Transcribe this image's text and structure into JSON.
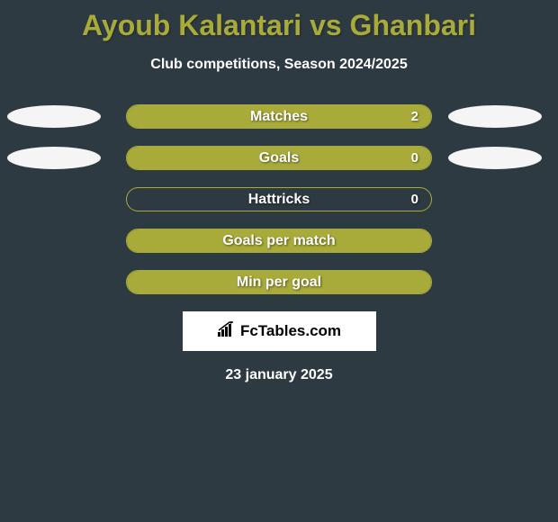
{
  "title": "Ayoub Kalantari vs Ghanbari",
  "subtitle": "Club competitions, Season 2024/2025",
  "date": "23 january 2025",
  "brand": "FcTables.com",
  "colors": {
    "background": "#2e3a42",
    "accent": "#a8aa3a",
    "text": "#ffffff",
    "ellipse": "#f5f5f5",
    "brand_bg": "#ffffff"
  },
  "chart": {
    "type": "bar",
    "rows": [
      {
        "label": "Matches",
        "value": "2",
        "fill_percent": 100,
        "show_left_ellipse": true,
        "show_right_ellipse": true
      },
      {
        "label": "Goals",
        "value": "0",
        "fill_percent": 100,
        "show_left_ellipse": true,
        "show_right_ellipse": true
      },
      {
        "label": "Hattricks",
        "value": "0",
        "fill_percent": 0,
        "show_left_ellipse": false,
        "show_right_ellipse": false
      },
      {
        "label": "Goals per match",
        "value": "",
        "fill_percent": 100,
        "show_left_ellipse": false,
        "show_right_ellipse": false
      },
      {
        "label": "Min per goal",
        "value": "",
        "fill_percent": 100,
        "show_left_ellipse": false,
        "show_right_ellipse": false
      }
    ]
  }
}
